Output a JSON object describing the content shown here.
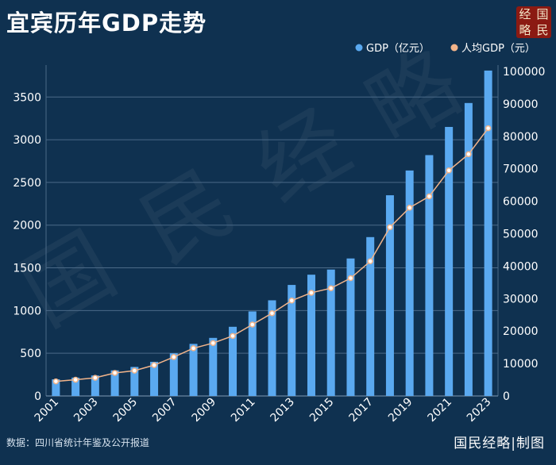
{
  "header": {
    "title": "宜宾历年GDP走势",
    "logo_chars": [
      "经",
      "国",
      "略",
      "民"
    ]
  },
  "footer": {
    "source": "数据：四川省统计年鉴及公开报道",
    "brand": "国民经略|制图"
  },
  "watermark": "国民经略",
  "colors": {
    "background": "#0f3150",
    "bar": "#5aa9f0",
    "line": "#f2b48a",
    "marker_fill": "#ffffff",
    "grid": "#4b6a88",
    "axis_text": "#ffffff",
    "logo_bg": "#8b1a12"
  },
  "chart_data": {
    "type": "bar+line",
    "title": "宜宾历年GDP走势",
    "categories": [
      "2001",
      "2002",
      "2003",
      "2004",
      "2005",
      "2006",
      "2007",
      "2008",
      "2009",
      "2010",
      "2011",
      "2012",
      "2013",
      "2014",
      "2015",
      "2016",
      "2017",
      "2018",
      "2019",
      "2020",
      "2021",
      "2022",
      "2023"
    ],
    "tick_labels": [
      "2001",
      "2003",
      "2005",
      "2007",
      "2009",
      "2011",
      "2013",
      "2015",
      "2017",
      "2019",
      "2021",
      "2023"
    ],
    "series": [
      {
        "name": "GDP（亿元）",
        "type": "bar",
        "axis": "left",
        "values": [
          195,
          215,
          240,
          300,
          340,
          400,
          500,
          610,
          680,
          810,
          990,
          1120,
          1300,
          1420,
          1480,
          1610,
          1860,
          2350,
          2640,
          2820,
          3150,
          3430,
          3810
        ]
      },
      {
        "name": "人均GDP（元）",
        "type": "line",
        "axis": "right",
        "values": [
          4500,
          5000,
          5600,
          7100,
          7800,
          9500,
          12000,
          14700,
          16300,
          18500,
          22000,
          25500,
          29400,
          31800,
          33200,
          36300,
          41500,
          52000,
          58000,
          61500,
          69500,
          74500,
          82500
        ]
      }
    ],
    "y_left": {
      "min": 0,
      "max": 3800,
      "ticks": [
        0,
        500,
        1000,
        1500,
        2000,
        2500,
        3000,
        3500
      ]
    },
    "y_right": {
      "min": 0,
      "max": 100000,
      "ticks": [
        0,
        10000,
        20000,
        30000,
        40000,
        50000,
        60000,
        70000,
        80000,
        90000,
        100000
      ]
    },
    "legend": {
      "position": "top-right"
    },
    "grid": true
  }
}
